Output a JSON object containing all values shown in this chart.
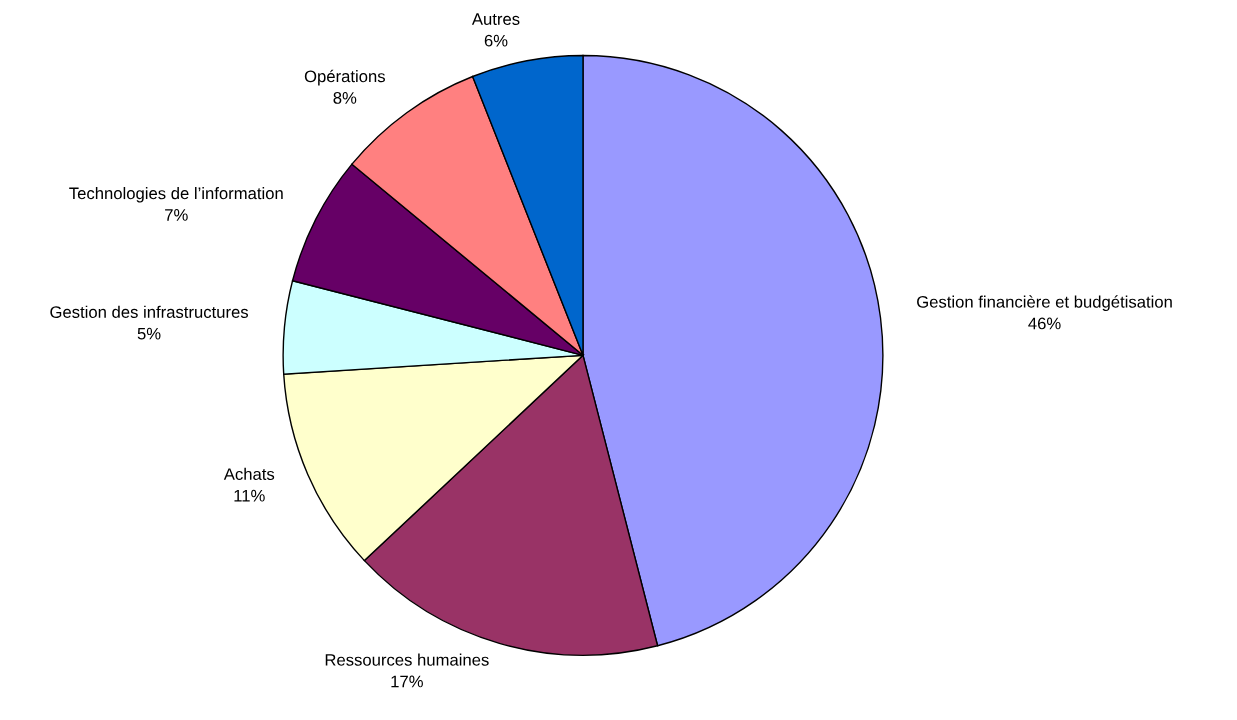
{
  "chart_data": {
    "type": "pie",
    "categories": [
      "Gestion financière et budgétisation",
      "Ressources humaines",
      "Achats",
      "Gestion des infrastructures",
      "Technologies de l’information",
      "Opérations",
      "Autres"
    ],
    "values": [
      46,
      17,
      11,
      5,
      7,
      8,
      6
    ],
    "value_labels": [
      "46%",
      "17%",
      "11%",
      "5%",
      "7%",
      "8%",
      "6%"
    ],
    "colors": [
      "#9999ff",
      "#993366",
      "#ffffcc",
      "#ccffff",
      "#660066",
      "#ff8080",
      "#0066cc"
    ],
    "legend": false
  }
}
